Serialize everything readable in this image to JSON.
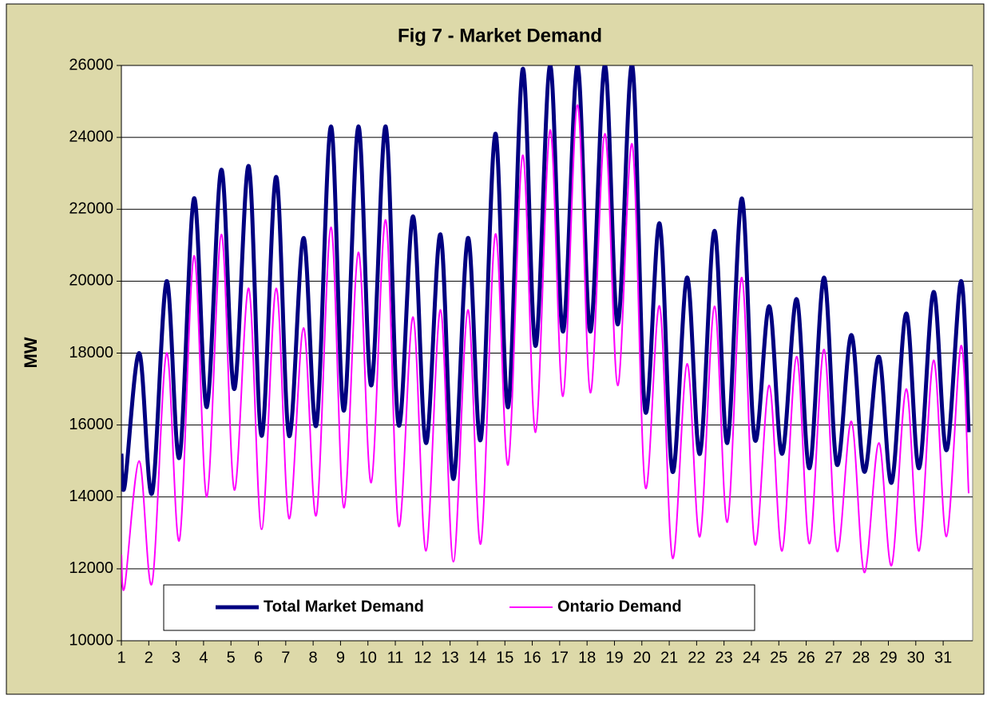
{
  "chart_data": {
    "type": "line",
    "title": "Fig 7 - Market Demand",
    "y_label": "MW",
    "x": [
      1,
      1.12,
      1.65,
      2.12,
      2.65,
      3.12,
      3.65,
      4.12,
      4.65,
      5.12,
      5.65,
      6.12,
      6.65,
      7.12,
      7.65,
      8.12,
      8.65,
      9.12,
      9.65,
      10.12,
      10.65,
      11.12,
      11.65,
      12.12,
      12.65,
      13.12,
      13.65,
      14.12,
      14.65,
      15.12,
      15.65,
      16.12,
      16.65,
      17.12,
      17.65,
      18.12,
      18.65,
      19.12,
      19.65,
      20.12,
      20.65,
      21.12,
      21.65,
      22.12,
      22.65,
      23.12,
      23.65,
      24.12,
      24.65,
      25.12,
      25.65,
      26.12,
      26.65,
      27.12,
      27.65,
      28.12,
      28.65,
      29.12,
      29.65,
      30.12,
      30.65,
      31.12,
      31.65,
      31.93
    ],
    "series": [
      {
        "name": "Total Market Demand",
        "color": "#000080",
        "values": [
          15200,
          14300,
          18000,
          14100,
          20000,
          15100,
          22300,
          16500,
          23100,
          17000,
          23200,
          15700,
          22900,
          15700,
          21200,
          16000,
          24300,
          16400,
          24300,
          17100,
          24300,
          16000,
          21800,
          15500,
          21300,
          14500,
          21200,
          15600,
          24100,
          16500,
          25900,
          18200,
          26000,
          18600,
          26000,
          18600,
          26000,
          18800,
          26000,
          16400,
          21600,
          14700,
          20100,
          15200,
          21400,
          15500,
          22300,
          15600,
          19300,
          15200,
          19500,
          14800,
          20100,
          14900,
          18500,
          14700,
          17900,
          14400,
          19100,
          14800,
          19700,
          15300,
          20000,
          15800
        ]
      },
      {
        "name": "Ontario Demand",
        "color": "#ff00ff",
        "values": [
          12400,
          11500,
          15000,
          11600,
          18000,
          12800,
          20700,
          14000,
          21300,
          14200,
          19800,
          13100,
          19800,
          13400,
          18700,
          13500,
          21500,
          13700,
          20800,
          14400,
          21700,
          13200,
          19000,
          12500,
          19200,
          12200,
          19200,
          12700,
          21300,
          14900,
          23500,
          15800,
          24200,
          16800,
          24900,
          16900,
          24100,
          17100,
          23800,
          14300,
          19300,
          12300,
          17700,
          12900,
          19300,
          13300,
          20100,
          12700,
          17100,
          12500,
          17900,
          12700,
          18100,
          12500,
          16100,
          11900,
          15500,
          12100,
          17000,
          12500,
          17800,
          12900,
          18200,
          14100
        ]
      }
    ],
    "xlim": [
      1,
      32
    ],
    "xticks": [
      1,
      2,
      3,
      4,
      5,
      6,
      7,
      8,
      9,
      10,
      11,
      12,
      13,
      14,
      15,
      16,
      17,
      18,
      19,
      20,
      21,
      22,
      23,
      24,
      25,
      26,
      27,
      28,
      29,
      30,
      31
    ],
    "ylim": [
      10000,
      26000
    ],
    "yticks": [
      10000,
      12000,
      14000,
      16000,
      18000,
      20000,
      22000,
      24000,
      26000
    ],
    "grid": true
  }
}
